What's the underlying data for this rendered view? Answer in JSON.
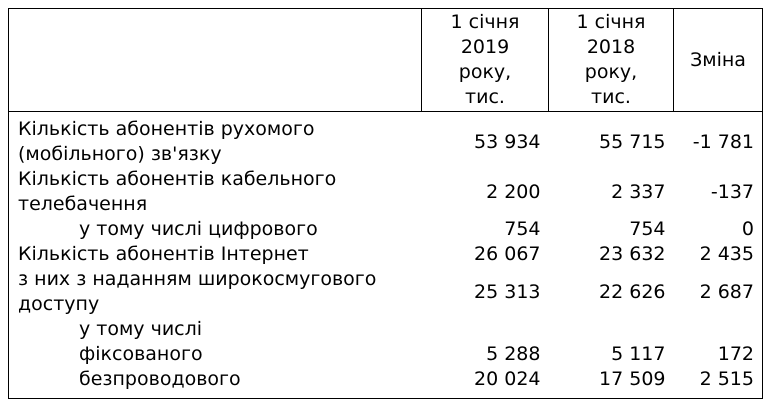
{
  "header": {
    "col_2019": [
      "1 січня",
      "2019",
      "року,",
      "тис."
    ],
    "col_2018": [
      "1 січня",
      "2018",
      "року,",
      "тис."
    ],
    "col_change": "Зміна"
  },
  "rows": [
    {
      "label": "Кількість абонентів рухомого (мобільного) зв'язку",
      "v2019": "53 934",
      "v2018": "55 715",
      "change": "-1 781",
      "indent": false
    },
    {
      "label": "Кількість абонентів кабельного телебачення",
      "v2019": "2 200",
      "v2018": "2 337",
      "change": "-137",
      "indent": false
    },
    {
      "label": "у тому числі цифрового",
      "v2019": "754",
      "v2018": "754",
      "change": "0",
      "indent": true
    },
    {
      "label": "Кількість абонентів Інтернет",
      "v2019": "26 067",
      "v2018": "23 632",
      "change": "2 435",
      "indent": false
    },
    {
      "label": "з них з наданням широкосмугового доступу",
      "v2019": "25 313",
      "v2018": "22 626",
      "change": "2 687",
      "indent": false
    },
    {
      "label": "у тому числі",
      "v2019": "",
      "v2018": "",
      "change": "",
      "indent": true
    },
    {
      "label": "фіксованого",
      "v2019": "5 288",
      "v2018": "5 117",
      "change": "172",
      "indent": true
    },
    {
      "label": "безпроводового",
      "v2019": "20 024",
      "v2018": "17 509",
      "change": "2 515",
      "indent": true
    }
  ]
}
